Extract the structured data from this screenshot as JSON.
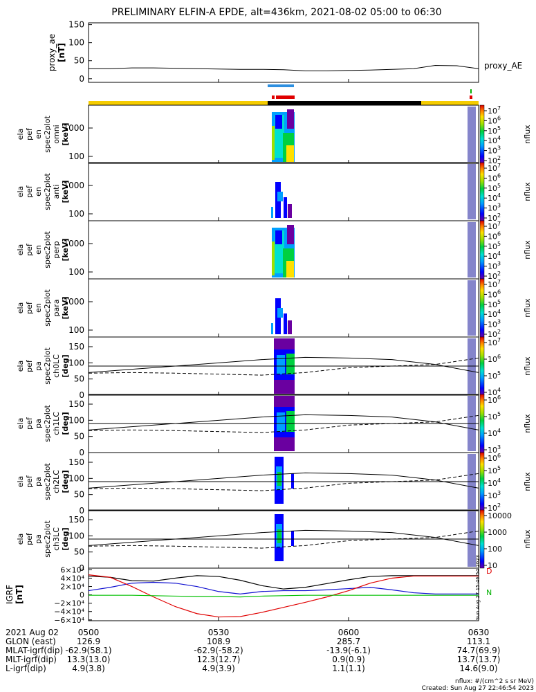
{
  "title": "PRELIMINARY ELFIN-A EPDE, alt=436km, 2021-08-02 05:00 to 06:30",
  "colors": {
    "orbit_yellow": "#f5cc00",
    "orbit_black": "#000000",
    "bar_blue": "#2d8fe0",
    "bar_red": "#e00000",
    "bar_green": "#00b000",
    "line_black": "#000000",
    "line_blue": "#1010d0",
    "line_red": "#e00000",
    "line_green": "#00c000"
  },
  "chart_data": {
    "type": "heatmap",
    "x_tick_labels": [
      "0500",
      "0530",
      "0600",
      "0630"
    ],
    "proxy_ae": {
      "ylabel": [
        "proxy_ae",
        "[nT]"
      ],
      "yticks": [
        "150",
        "100",
        "50",
        "0"
      ],
      "ylim": [
        -10,
        155
      ],
      "legend": "proxy_AE",
      "x_min": [
        0,
        5,
        10,
        15,
        20,
        25,
        30,
        35,
        40,
        45,
        50,
        55,
        60,
        65,
        70,
        75,
        80,
        85,
        90
      ],
      "values": [
        28,
        28,
        30,
        30,
        29,
        28,
        27,
        26,
        26,
        25,
        22,
        22,
        23,
        24,
        26,
        28,
        37,
        36,
        28
      ]
    },
    "energy_panels": [
      {
        "ylabel": [
          "ela",
          "pef",
          "en",
          "spec2plot",
          "omni",
          "[keV]"
        ],
        "yticks": [
          "1000",
          "100"
        ],
        "cbar_label": "nflux",
        "cbar_ticks": [
          "10",
          "10",
          "10",
          "10",
          "10",
          "10"
        ],
        "cbar_exps": [
          "7",
          "6",
          "5",
          "4",
          "3",
          "2"
        ]
      },
      {
        "ylabel": [
          "ela",
          "pef",
          "en",
          "spec2plot",
          "anti",
          "[keV]"
        ],
        "yticks": [
          "1000",
          "100"
        ],
        "cbar_label": "nflux",
        "cbar_ticks": [
          "10",
          "10",
          "10",
          "10",
          "10",
          "10"
        ],
        "cbar_exps": [
          "7",
          "6",
          "5",
          "4",
          "3",
          "2"
        ]
      },
      {
        "ylabel": [
          "ela",
          "pef",
          "en",
          "spec2plot",
          "perp",
          "[keV]"
        ],
        "yticks": [
          "1000",
          "100"
        ],
        "cbar_label": "nflux",
        "cbar_ticks": [
          "10",
          "10",
          "10",
          "10",
          "10",
          "10"
        ],
        "cbar_exps": [
          "7",
          "6",
          "5",
          "4",
          "3",
          "2"
        ]
      },
      {
        "ylabel": [
          "ela",
          "pef",
          "en",
          "spec2plot",
          "para",
          "[keV]"
        ],
        "yticks": [
          "1000",
          "100"
        ],
        "cbar_label": "nflux",
        "cbar_ticks": [
          "10",
          "10",
          "10",
          "10",
          "10",
          "10"
        ],
        "cbar_exps": [
          "7",
          "6",
          "5",
          "4",
          "3",
          "2"
        ]
      }
    ],
    "pa_panels": [
      {
        "ylabel": [
          "ela",
          "pef",
          "pa",
          "spec2plot",
          "ch0LC",
          "[deg]"
        ],
        "yticks": [
          "150",
          "100",
          "50",
          "0"
        ],
        "cbar_label": "nflux",
        "cbar_ticks": [
          "10",
          "10",
          "10",
          "10"
        ],
        "cbar_exps": [
          "7",
          "6",
          "5",
          "4"
        ]
      },
      {
        "ylabel": [
          "ela",
          "pef",
          "pa",
          "spec2plot",
          "ch1LC",
          "[deg]"
        ],
        "yticks": [
          "150",
          "100",
          "50",
          "0"
        ],
        "cbar_label": "nflux",
        "cbar_ticks": [
          "10",
          "10",
          "10",
          "10"
        ],
        "cbar_exps": [
          "6",
          "5",
          "4",
          "3"
        ]
      },
      {
        "ylabel": [
          "ela",
          "pef",
          "pa",
          "spec2plot",
          "ch2LC",
          "[deg]"
        ],
        "yticks": [
          "150",
          "100",
          "50",
          "0"
        ],
        "cbar_label": "nflux",
        "cbar_ticks": [
          "10",
          "10",
          "10",
          "10",
          "10"
        ],
        "cbar_exps": [
          "6",
          "5",
          "4",
          "3",
          "2"
        ]
      },
      {
        "ylabel": [
          "ela",
          "pef",
          "pa",
          "spec2plot",
          "ch3LC",
          "[deg]"
        ],
        "yticks": [
          "150",
          "100",
          "50",
          "0"
        ],
        "cbar_label": "nflux",
        "cbar_ticks": [
          "10000",
          "1000",
          "100",
          "10"
        ],
        "cbar_exps": [
          "",
          "",
          "",
          ""
        ]
      }
    ],
    "pa_lines": {
      "x_min": [
        0,
        10,
        20,
        30,
        40,
        50,
        60,
        70,
        80,
        90
      ],
      "solid": [
        70,
        80,
        90,
        100,
        110,
        117,
        115,
        110,
        95,
        70
      ],
      "dashed": [
        68,
        70,
        68,
        65,
        62,
        70,
        85,
        90,
        95,
        115
      ],
      "ref": 90
    },
    "igrf": {
      "ylabel": [
        "IGRF",
        "[nT]"
      ],
      "yticks": [
        "6×10⁴",
        "4×10⁴",
        "2×10⁴",
        "0",
        "−2×10⁴",
        "−4×10⁴",
        "−6×10⁴"
      ],
      "ylim": [
        -62000,
        64000
      ],
      "x_min": [
        0,
        5,
        10,
        15,
        20,
        25,
        30,
        35,
        40,
        45,
        50,
        55,
        60,
        65,
        70,
        75,
        80,
        85,
        90
      ],
      "black": [
        45000,
        42000,
        34000,
        33000,
        40000,
        46000,
        44000,
        35000,
        22000,
        14000,
        18000,
        27000,
        36000,
        44000,
        46000,
        46000,
        46000,
        46000,
        46000
      ],
      "blue": [
        10000,
        18000,
        28000,
        30000,
        28000,
        20000,
        8000,
        2000,
        8000,
        10000,
        10000,
        12000,
        15000,
        18000,
        12000,
        5000,
        2000,
        2000,
        2000
      ],
      "red": [
        48000,
        42000,
        20000,
        -5000,
        -28000,
        -45000,
        -53000,
        -52000,
        -42000,
        -30000,
        -18000,
        -5000,
        10000,
        28000,
        40000,
        45000,
        45000,
        45000,
        45000
      ],
      "green": [
        -1000,
        -1000,
        -1000,
        -2000,
        -3000,
        -4000,
        -4000,
        -5000,
        -3000,
        -2000,
        -1000,
        -1000,
        -1000,
        -1000,
        -1000,
        -1000,
        -1000,
        -1000,
        -1000
      ],
      "legend_d": "D",
      "legend_n": "N"
    },
    "ephemeris": {
      "labels": [
        "2021 Aug 02",
        "GLON (east)",
        "MLAT-igrf(dip)",
        "MLT-igrf(dip)",
        "L-igrf(dip)"
      ],
      "columns": [
        [
          "0500",
          "126.9",
          "-62.9(58.1)",
          "13.3(13.0)",
          "4.9(3.8)"
        ],
        [
          "0530",
          "108.9",
          "-62.9(-58.2)",
          "12.3(12.7)",
          "4.9(3.9)"
        ],
        [
          "0600",
          "285.7",
          "-13.9(-6.1)",
          "0.9(0.9)",
          "1.1(1.1)"
        ],
        [
          "0630",
          "113.1",
          "74.7(69.9)",
          "13.7(13.7)",
          "14.6(9.0)"
        ]
      ]
    }
  },
  "side_stamp": "Sun Aug 27 15:46:54 2023",
  "footer": {
    "units": "nflux: #/(cm^2 s sr MeV)",
    "created": "Created: Sun Aug 27 22:46:54 2023"
  }
}
